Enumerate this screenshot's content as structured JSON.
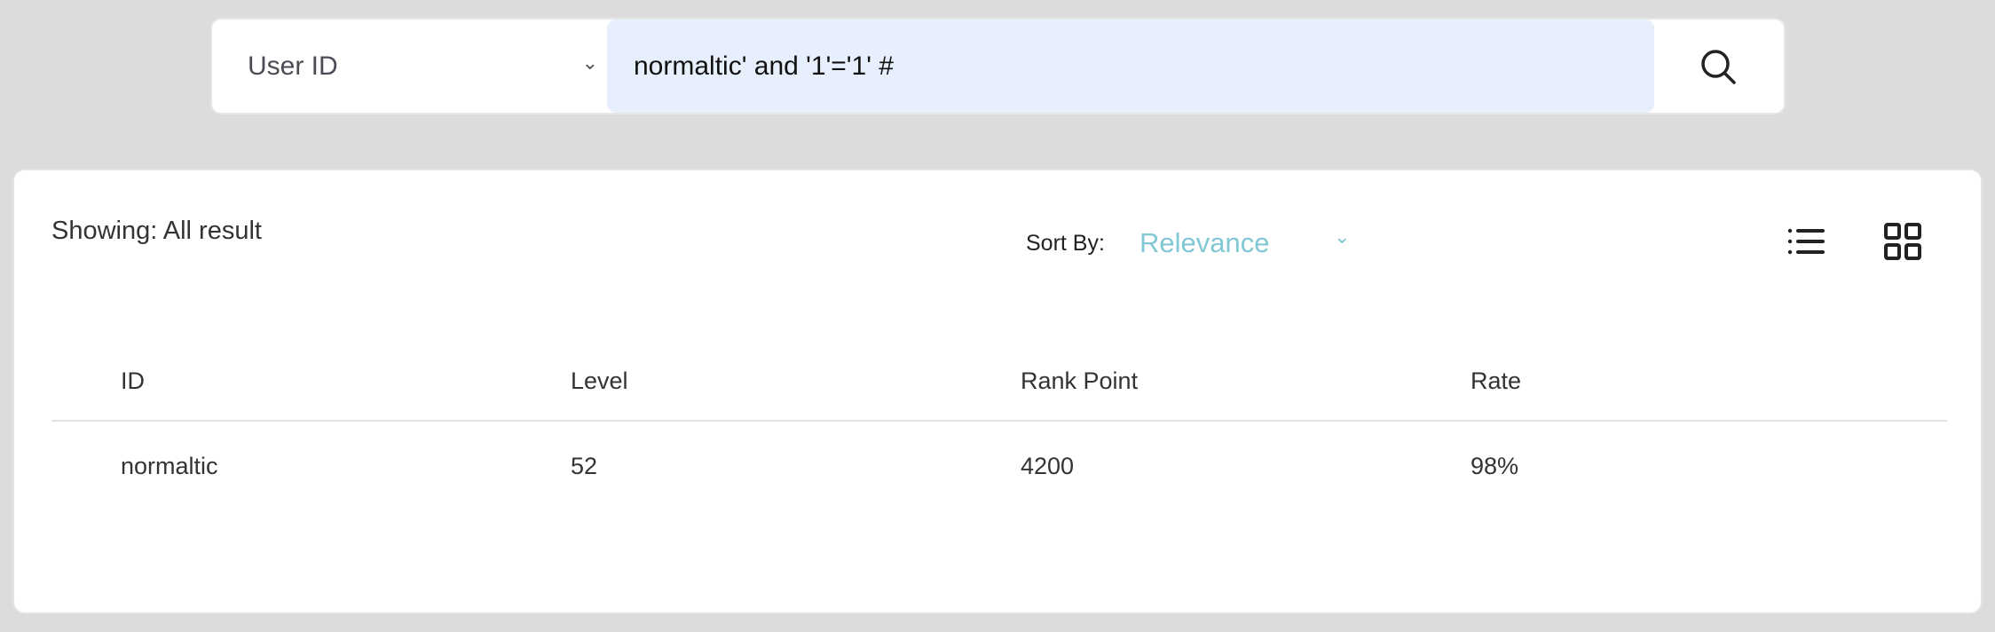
{
  "search": {
    "field_select": "User ID",
    "query": "normaltic' and '1'='1' #",
    "search_icon": "search-icon"
  },
  "results": {
    "showing": "Showing: All result",
    "sort_label": "Sort By:",
    "sort_value": "Relevance",
    "sort_color": "#7fc8d4",
    "view_icons": [
      "list-view-icon",
      "grid-view-icon"
    ],
    "columns": [
      "ID",
      "Level",
      "Rank Point",
      "Rate"
    ],
    "rows": [
      [
        "normaltic",
        "52",
        "4200",
        "98%"
      ]
    ]
  }
}
